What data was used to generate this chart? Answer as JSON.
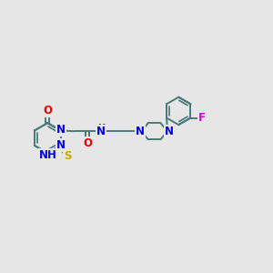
{
  "bg_color": "#e6e6e6",
  "bond_color": "#4a7a7a",
  "bond_width": 1.4,
  "atom_colors": {
    "N": "#0000ee",
    "O": "#ee0000",
    "S": "#ccaa00",
    "F": "#dd00dd",
    "C": "#111111",
    "H": "#333333"
  },
  "font_size": 8.5,
  "fig_size": [
    3.0,
    3.0
  ],
  "dpi": 100
}
